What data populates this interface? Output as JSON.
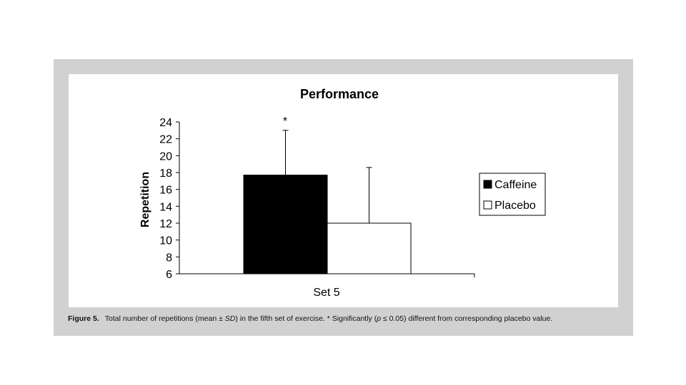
{
  "chart_data": {
    "type": "bar",
    "title": "Performance",
    "xlabel": "",
    "ylabel": "Repetition",
    "categories": [
      "Set 5"
    ],
    "ylim": [
      6,
      24
    ],
    "yticks": [
      "6",
      "8",
      "10",
      "12",
      "14",
      "16",
      "18",
      "20",
      "22",
      "24"
    ],
    "grid": false,
    "legend_position": "right",
    "series": [
      {
        "name": "Caffeine",
        "values": [
          17.7
        ],
        "error": [
          5.3
        ],
        "color": "#000000"
      },
      {
        "name": "Placebo",
        "values": [
          12.0
        ],
        "error": [
          6.6
        ],
        "color": "#ffffff"
      }
    ],
    "annotations": [
      "*"
    ]
  },
  "caption": {
    "label": "Figure 5.",
    "text_a": "Total number of repetitions (mean ± ",
    "sd": "SD",
    "text_b": ") in the fifth set of exercise. * Significantly (",
    "p": "p",
    "text_c": " ≤ 0.05) different from corresponding placebo value."
  }
}
